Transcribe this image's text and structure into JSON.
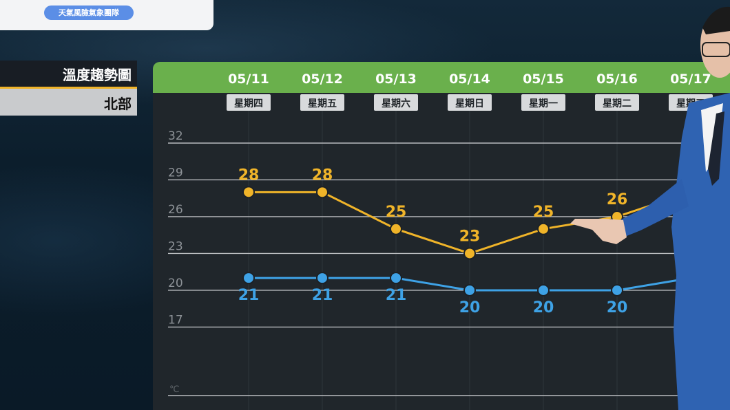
{
  "header": {
    "badge_text": "天氣風險氣象團隊"
  },
  "sidebar": {
    "title": "溫度趨勢圖",
    "region": "北部"
  },
  "colors": {
    "header_green": "#6ab04c",
    "high_series": "#f0b429",
    "low_series": "#3ea2e6",
    "panel_bg": "#20262b"
  },
  "chart_data": {
    "type": "line",
    "dates": [
      "05/11",
      "05/12",
      "05/13",
      "05/14",
      "05/15",
      "05/16",
      "05/17"
    ],
    "weekdays": [
      "星期四",
      "星期五",
      "星期六",
      "星期日",
      "星期一",
      "星期二",
      "星期三"
    ],
    "ylabel": "℃",
    "y_ticks": [
      32,
      29,
      26,
      23,
      20,
      17
    ],
    "ylim": [
      14.5,
      32
    ],
    "grid": true,
    "series": [
      {
        "values": [
          28,
          28,
          25,
          23,
          25,
          26,
          28
        ]
      },
      {
        "values": [
          21,
          21,
          21,
          20,
          20,
          20,
          21
        ]
      }
    ]
  }
}
